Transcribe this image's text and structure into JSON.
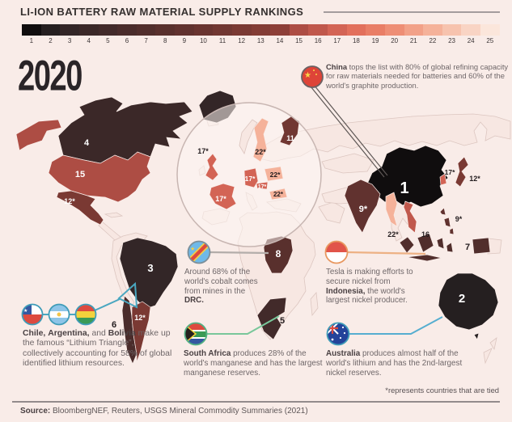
{
  "title": "LI-ION BATTERY RAW MATERIAL SUPPLY RANKINGS",
  "year": "2020",
  "scale": {
    "ranks": [
      "1",
      "2",
      "3",
      "4",
      "5",
      "6",
      "7",
      "8",
      "9",
      "10",
      "11",
      "12",
      "13",
      "14",
      "15",
      "16",
      "17",
      "18",
      "19",
      "20",
      "21",
      "22",
      "23",
      "24",
      "25"
    ],
    "colors": [
      "#100d0e",
      "#251f20",
      "#332627",
      "#3b2828",
      "#422a2a",
      "#4a2c2b",
      "#512e2c",
      "#59302d",
      "#61322f",
      "#693430",
      "#713732",
      "#7a3933",
      "#833c35",
      "#8d3f38",
      "#ad4d44",
      "#c0584c",
      "#d36455",
      "#e2705c",
      "#e97e66",
      "#ee8e75",
      "#f2a188",
      "#f5b29a",
      "#f7c3ae",
      "#f9d4c4",
      "#fbe6db"
    ]
  },
  "map_labels": [
    {
      "country": "Canada",
      "label": "4"
    },
    {
      "country": "United States",
      "label": "15"
    },
    {
      "country": "Mexico",
      "label": "12*"
    },
    {
      "country": "Brazil",
      "label": "3"
    },
    {
      "country": "Chile",
      "label": "6"
    },
    {
      "country": "Argentina",
      "label": "12*"
    },
    {
      "country": "DRC",
      "label": "8"
    },
    {
      "country": "South Africa",
      "label": "5"
    },
    {
      "country": "United Kingdom",
      "label": "17*"
    },
    {
      "country": "France",
      "label": "17*"
    },
    {
      "country": "Germany",
      "label": "17*"
    },
    {
      "country": "Czech Republic",
      "label": "17*"
    },
    {
      "country": "Poland",
      "label": "22*"
    },
    {
      "country": "Hungary",
      "label": "22*"
    },
    {
      "country": "Sweden",
      "label": "22*"
    },
    {
      "country": "Finland",
      "label": "11"
    },
    {
      "country": "China",
      "label": "1"
    },
    {
      "country": "South Korea",
      "label": "17*"
    },
    {
      "country": "Japan",
      "label": "12*"
    },
    {
      "country": "India",
      "label": "9*"
    },
    {
      "country": "Myanmar",
      "label": "22*"
    },
    {
      "country": "Vietnam",
      "label": "16"
    },
    {
      "country": "Philippines",
      "label": "9*"
    },
    {
      "country": "Indonesia",
      "label": "7"
    },
    {
      "country": "Australia",
      "label": "2"
    }
  ],
  "callouts": {
    "china": {
      "flag": "china-flag",
      "segments": [
        {
          "t": "China",
          "b": true
        },
        {
          "t": " tops the list with 80% of global refining capacity for raw materials needed for batteries and 60% of the world's graphite production."
        }
      ]
    },
    "drc": {
      "flag": "drc-flag",
      "segments": [
        {
          "t": "Around 68% of the world's cobalt comes from mines in the "
        },
        {
          "t": "DRC.",
          "b": true
        }
      ]
    },
    "indonesia": {
      "flag": "indonesia-flag",
      "segments": [
        {
          "t": "Tesla is making efforts to secure nickel from "
        },
        {
          "t": "Indonesia,",
          "b": true
        },
        {
          "t": " the world's largest nickel producer."
        }
      ]
    },
    "lithium": {
      "flags": [
        "chile-flag",
        "argentina-flag",
        "bolivia-flag"
      ],
      "segments": [
        {
          "t": "Chile,",
          "b": true
        },
        {
          "t": " "
        },
        {
          "t": "Argentina,",
          "b": true
        },
        {
          "t": " and "
        },
        {
          "t": "Bolivia",
          "b": true
        },
        {
          "t": " make up the famous “Lithium Triangle”, collectively accounting for 58% of global identified lithium resources."
        }
      ]
    },
    "south_africa": {
      "flag": "south-africa-flag",
      "segments": [
        {
          "t": "South Africa",
          "b": true
        },
        {
          "t": " produces 28% of the world's manganese and has the largest manganese reserves."
        }
      ]
    },
    "australia": {
      "flag": "australia-flag",
      "segments": [
        {
          "t": "Australia",
          "b": true
        },
        {
          "t": " produces almost half of the world's lithium and has the 2nd-largest nickel reserves."
        }
      ]
    }
  },
  "footnote": "*represents countries that are tied",
  "source": {
    "label": "Source:",
    "text": " BloombergNEF, Reuters, USGS Mineral Commodity Summaries (2021)"
  }
}
